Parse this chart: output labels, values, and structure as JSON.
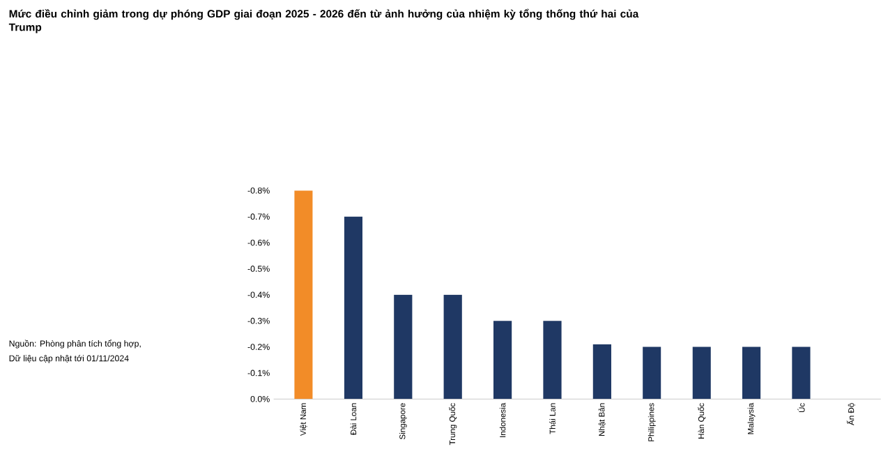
{
  "chart_data": {
    "type": "bar",
    "title": "Mức điều chỉnh giảm trong dự phóng GDP giai đoạn 2025 - 2026 đến từ ảnh hưởng của nhiệm kỳ tổng thống thứ hai của Trump",
    "categories": [
      "Việt Nam",
      "Đài Loan",
      "Singapore",
      "Trung Quốc",
      "Indonesia",
      "Thái Lan",
      "Nhật Bản",
      "Philippines",
      "Hàn Quốc",
      "Malaysia",
      "Úc",
      "Ấn Độ"
    ],
    "values": [
      -0.8,
      -0.7,
      -0.4,
      -0.4,
      -0.3,
      -0.3,
      -0.21,
      -0.2,
      -0.2,
      -0.2,
      -0.2,
      0
    ],
    "colors": [
      "#f28c28",
      "#1f3864",
      "#1f3864",
      "#1f3864",
      "#1f3864",
      "#1f3864",
      "#1f3864",
      "#1f3864",
      "#1f3864",
      "#1f3864",
      "#1f3864",
      "#1f3864"
    ],
    "ylim": [
      0,
      -0.8
    ],
    "yticks": [
      {
        "value": 0,
        "label": "0.0%"
      },
      {
        "value": -0.1,
        "label": "-0.1%"
      },
      {
        "value": -0.2,
        "label": "-0.2%"
      },
      {
        "value": -0.3,
        "label": "-0.3%"
      },
      {
        "value": -0.4,
        "label": "-0.4%"
      },
      {
        "value": -0.5,
        "label": "-0.5%"
      },
      {
        "value": -0.6,
        "label": "-0.6%"
      },
      {
        "value": -0.7,
        "label": "-0.7%"
      },
      {
        "value": -0.8,
        "label": "-0.8%"
      }
    ],
    "annotations": [
      "Nguồn: Phòng phân tích tổng hợp,",
      "Dữ liệu cập nhật tới 01/11/2024"
    ]
  }
}
